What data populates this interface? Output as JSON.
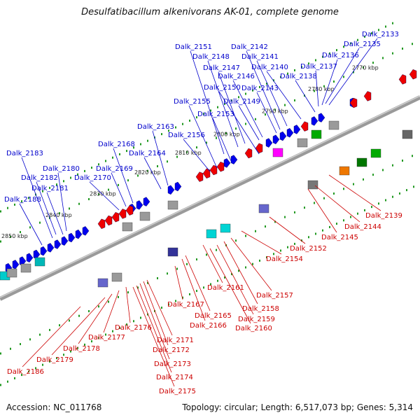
{
  "title": "Desulfatibacillum alkenivorans AK-01, complete genome",
  "footer": {
    "accession": "Accession: NC_011768",
    "topology": "Topology: circular; Length: 6,517,073 bp; Genes: 5,314"
  },
  "colors": {
    "forward_label": "#0000cc",
    "reverse_label": "#cc0000",
    "backbone": "#7a7a7a",
    "forward_gene": "#0000ee",
    "reverse_gene": "#ee0000",
    "tick": "#229922"
  },
  "kbp_ticks": [
    "2770 kbp",
    "2780 kbp",
    "2790 kbp",
    "2800 kbp",
    "2810 kbp",
    "2820 kbp",
    "2830 kbp",
    "2840 kbp",
    "2850 kbp"
  ],
  "top_labels": [
    {
      "name": "Dalk_2133"
    },
    {
      "name": "Dalk_2135"
    },
    {
      "name": "Dalk_2136"
    },
    {
      "name": "Dalk_2137"
    },
    {
      "name": "Dalk_2138"
    },
    {
      "name": "Dalk_2140"
    },
    {
      "name": "Dalk_2141"
    },
    {
      "name": "Dalk_2142"
    },
    {
      "name": "Dalk_2143"
    },
    {
      "name": "Dalk_2146"
    },
    {
      "name": "Dalk_2147"
    },
    {
      "name": "Dalk_2148"
    },
    {
      "name": "Dalk_2151"
    },
    {
      "name": "Dalk_2150"
    },
    {
      "name": "Dalk_2149"
    },
    {
      "name": "Dalk_2153"
    },
    {
      "name": "Dalk_2155"
    },
    {
      "name": "Dalk_2156"
    },
    {
      "name": "Dalk_2163"
    },
    {
      "name": "Dalk_2164"
    },
    {
      "name": "Dalk_2168"
    },
    {
      "name": "Dalk_2169"
    },
    {
      "name": "Dalk_2170"
    },
    {
      "name": "Dalk_2180"
    },
    {
      "name": "Dalk_2181"
    },
    {
      "name": "Dalk_2182"
    },
    {
      "name": "Dalk_2183"
    },
    {
      "name": "Dalk_2188"
    }
  ],
  "bottom_labels": [
    {
      "name": "Dalk_2139"
    },
    {
      "name": "Dalk_2144"
    },
    {
      "name": "Dalk_2145"
    },
    {
      "name": "Dalk_2152"
    },
    {
      "name": "Dalk_2154"
    },
    {
      "name": "Dalk_2157"
    },
    {
      "name": "Dalk_2158"
    },
    {
      "name": "Dalk_2159"
    },
    {
      "name": "Dalk_2160"
    },
    {
      "name": "Dalk_2161"
    },
    {
      "name": "Dalk_2165"
    },
    {
      "name": "Dalk_2166"
    },
    {
      "name": "Dalk_2167"
    },
    {
      "name": "Dalk_2171"
    },
    {
      "name": "Dalk_2172"
    },
    {
      "name": "Dalk_2173"
    },
    {
      "name": "Dalk_2174"
    },
    {
      "name": "Dalk_2175"
    },
    {
      "name": "Dalk_2176"
    },
    {
      "name": "Dalk_2177"
    },
    {
      "name": "Dalk_2178"
    },
    {
      "name": "Dalk_2179"
    },
    {
      "name": "Dalk_2186"
    }
  ]
}
